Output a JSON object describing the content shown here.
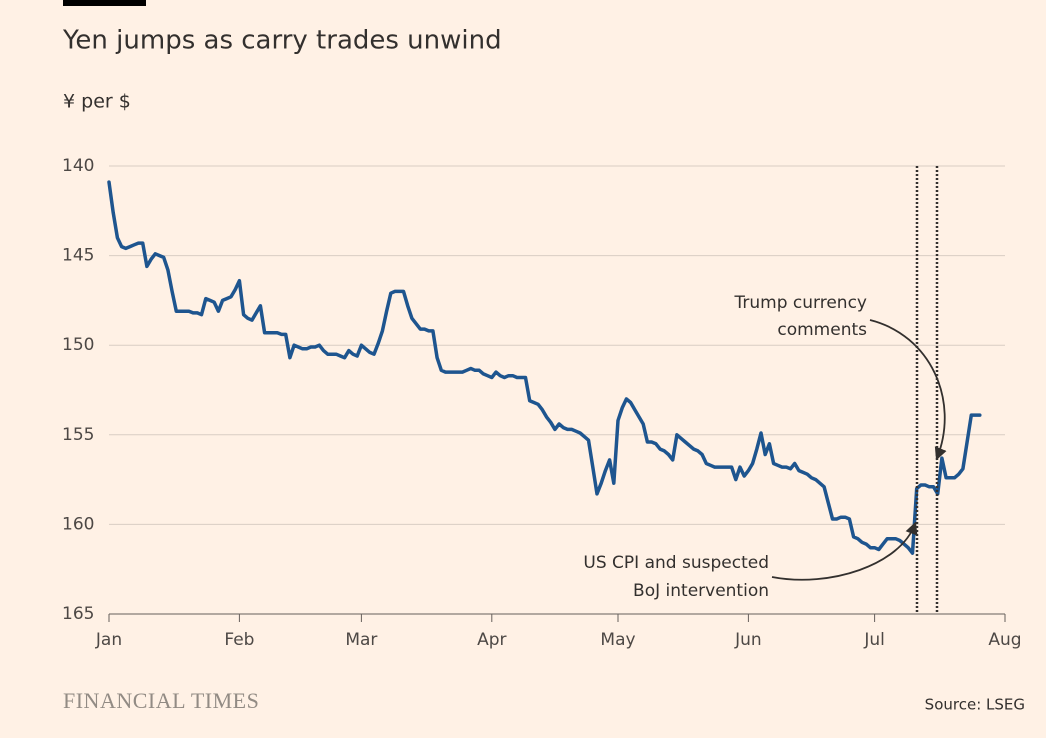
{
  "chart_data": {
    "type": "line",
    "title": "Yen jumps as carry trades unwind",
    "subtitle": "¥ per $",
    "source": "Source: LSEG",
    "brand": "FINANCIAL TIMES",
    "annotations": [
      [
        "US CPI and suspected",
        "BoJ intervention"
      ],
      [
        "Trump currency",
        "comments"
      ]
    ],
    "ylim": [
      140,
      165
    ],
    "y_inverted": true,
    "yticks": [
      140,
      145,
      150,
      155,
      160,
      165
    ],
    "grid": true,
    "categories": [
      "Jan",
      null,
      null,
      null,
      null,
      null,
      null,
      null,
      null,
      null,
      null,
      null,
      null,
      null,
      null,
      null,
      null,
      null,
      null,
      null,
      null,
      null,
      null,
      null,
      null,
      null,
      null,
      null,
      null,
      null,
      null,
      "Feb",
      null,
      null,
      null,
      null,
      null,
      null,
      null,
      null,
      null,
      null,
      null,
      null,
      null,
      null,
      null,
      null,
      null,
      null,
      null,
      null,
      null,
      null,
      null,
      null,
      null,
      null,
      null,
      null,
      "Mar",
      null,
      null,
      null,
      null,
      null,
      null,
      null,
      null,
      null,
      null,
      null,
      null,
      null,
      null,
      null,
      null,
      null,
      null,
      null,
      null,
      null,
      null,
      null,
      null,
      null,
      null,
      null,
      null,
      null,
      null,
      "Apr",
      null,
      null,
      null,
      null,
      null,
      null,
      null,
      null,
      null,
      null,
      null,
      null,
      null,
      null,
      null,
      null,
      null,
      null,
      null,
      null,
      null,
      null,
      null,
      null,
      null,
      null,
      null,
      null,
      null,
      "May",
      null,
      null,
      null,
      null,
      null,
      null,
      null,
      null,
      null,
      null,
      null,
      null,
      null,
      null,
      null,
      null,
      null,
      null,
      null,
      null,
      null,
      null,
      null,
      null,
      null,
      null,
      null,
      null,
      null,
      null,
      "Jun",
      null,
      null,
      null,
      null,
      null,
      null,
      null,
      null,
      null,
      null,
      null,
      null,
      null,
      null,
      null,
      null,
      null,
      null,
      null,
      null,
      null,
      null,
      null,
      null,
      null,
      null,
      null,
      null,
      null,
      "Jul",
      null,
      null,
      null,
      null,
      null,
      null,
      null,
      null,
      null,
      null,
      null,
      null,
      null,
      null,
      null,
      null,
      null,
      null,
      null,
      null,
      null,
      null,
      null,
      null,
      null,
      null,
      null,
      null,
      null,
      null,
      "Aug"
    ],
    "series": [
      {
        "color": "#1e558f",
        "values": [
          140.9,
          142.6,
          144.0,
          144.5,
          144.6,
          144.5,
          144.4,
          144.3,
          144.3,
          145.6,
          145.2,
          144.9,
          145.0,
          145.1,
          145.8,
          147.0,
          148.1,
          148.1,
          148.1,
          148.1,
          148.2,
          148.2,
          148.3,
          147.4,
          147.5,
          147.6,
          148.1,
          147.5,
          147.4,
          147.3,
          146.9,
          146.4,
          148.3,
          148.5,
          148.6,
          148.2,
          147.8,
          149.3,
          149.3,
          149.3,
          149.3,
          149.4,
          149.4,
          150.7,
          150.0,
          150.1,
          150.2,
          150.2,
          150.1,
          150.1,
          150.0,
          150.3,
          150.5,
          150.5,
          150.5,
          150.6,
          150.7,
          150.3,
          150.5,
          150.6,
          150.0,
          150.2,
          150.4,
          150.5,
          149.9,
          149.2,
          148.1,
          147.1,
          147.0,
          147.0,
          147.0,
          147.8,
          148.5,
          148.8,
          149.1,
          149.1,
          149.2,
          149.2,
          150.7,
          151.4,
          151.5,
          151.5,
          151.5,
          151.5,
          151.5,
          151.4,
          151.3,
          151.4,
          151.4,
          151.6,
          151.7,
          151.8,
          151.5,
          151.7,
          151.8,
          151.7,
          151.7,
          151.8,
          151.8,
          151.8,
          153.1,
          153.2,
          153.3,
          153.6,
          154.0,
          154.3,
          154.7,
          154.4,
          154.6,
          154.7,
          154.7,
          154.8,
          154.9,
          155.1,
          155.3,
          156.8,
          158.3,
          157.7,
          157.0,
          156.4,
          157.7,
          154.2,
          153.5,
          153.0,
          153.2,
          153.6,
          154.0,
          154.4,
          155.4,
          155.4,
          155.5,
          155.8,
          155.9,
          156.1,
          156.4,
          155.0,
          155.2,
          155.4,
          155.6,
          155.8,
          155.9,
          156.1,
          156.6,
          156.7,
          156.8,
          156.8,
          156.8,
          156.8,
          156.8,
          157.5,
          156.8,
          157.3,
          157.0,
          156.6,
          155.8,
          154.9,
          156.1,
          155.5,
          156.6,
          156.7,
          156.8,
          156.8,
          156.9,
          156.6,
          157.0,
          157.1,
          157.2,
          157.4,
          157.5,
          157.7,
          157.9,
          158.8,
          159.7,
          159.7,
          159.6,
          159.6,
          159.7,
          160.7,
          160.8,
          161.0,
          161.1,
          161.3,
          161.3,
          161.4,
          161.1,
          160.8,
          160.8,
          160.8,
          160.9,
          161.1,
          161.3,
          161.6,
          158.0,
          157.8,
          157.8,
          157.9,
          157.9,
          158.3,
          156.3,
          157.4,
          157.4,
          157.4,
          157.2,
          156.9,
          155.4,
          153.9,
          153.9,
          153.9,
          null,
          null,
          null,
          null,
          null,
          null
        ]
      }
    ]
  }
}
